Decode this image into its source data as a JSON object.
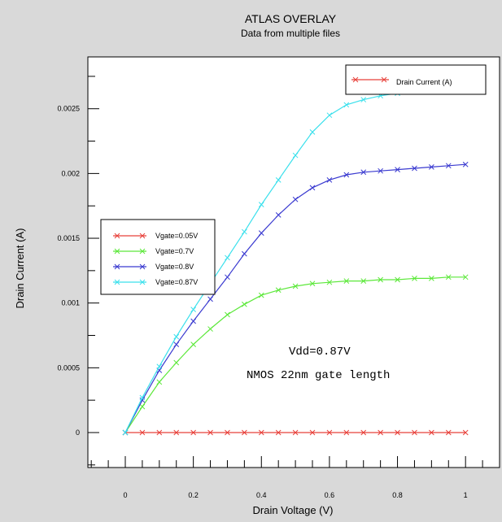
{
  "chart_data": {
    "type": "line",
    "title": "ATLAS OVERLAY",
    "subtitle": "Data from multiple files",
    "xlabel": "Drain Voltage (V)",
    "ylabel": "Drain Current (A)",
    "xlim": [
      -0.11,
      1.1
    ],
    "ylim": [
      -0.00027,
      0.0029
    ],
    "x_ticks": [
      "0",
      "0.2",
      "0.4",
      "0.6",
      "0.8",
      "1"
    ],
    "y_ticks": [
      "0",
      "0.0005",
      "0.001",
      "0.0015",
      "0.002",
      "0.0025"
    ],
    "legend_placement": "left",
    "grid": false,
    "x": [
      0,
      0.05,
      0.1,
      0.15,
      0.2,
      0.25,
      0.3,
      0.35,
      0.4,
      0.45,
      0.5,
      0.55,
      0.6,
      0.65,
      0.7,
      0.75,
      0.8,
      0.85,
      0.9,
      0.95,
      1.0
    ],
    "series": [
      {
        "name": "Vgate=0.05V",
        "color": "#e8403a",
        "values": [
          0,
          0,
          0,
          0,
          0,
          0,
          0,
          0,
          0,
          0,
          0,
          0,
          0,
          0,
          0,
          0,
          0,
          0,
          0,
          0,
          0
        ]
      },
      {
        "name": "Vgate=0.7V",
        "color": "#5ce83a",
        "values": [
          0,
          0.0002,
          0.00039,
          0.00054,
          0.00068,
          0.0008,
          0.00091,
          0.00099,
          0.00106,
          0.0011,
          0.00113,
          0.00115,
          0.00116,
          0.00117,
          0.00117,
          0.00118,
          0.00118,
          0.00119,
          0.00119,
          0.0012,
          0.0012
        ]
      },
      {
        "name": "Vgate=0.8V",
        "color": "#3a3ad0",
        "values": [
          0,
          0.00025,
          0.00048,
          0.00068,
          0.00086,
          0.00103,
          0.0012,
          0.00138,
          0.00154,
          0.00168,
          0.0018,
          0.00189,
          0.00195,
          0.00199,
          0.00201,
          0.00202,
          0.00203,
          0.00204,
          0.00205,
          0.00206,
          0.00207
        ]
      },
      {
        "name": "Vgate=0.87V",
        "color": "#3ae0ec",
        "values": [
          0,
          0.00027,
          0.00051,
          0.00074,
          0.00095,
          0.00115,
          0.00135,
          0.00155,
          0.00176,
          0.00195,
          0.00214,
          0.00232,
          0.00245,
          0.00253,
          0.00257,
          0.0026,
          0.00262,
          0.00264,
          0.00265,
          0.00266,
          0.00267
        ]
      }
    ],
    "inner_legend": {
      "label": "Drain Current (A)",
      "color": "#e8403a",
      "placement": "top-right"
    },
    "annotations": [
      "Vdd=0.87V",
      "NMOS 22nm gate length"
    ]
  }
}
